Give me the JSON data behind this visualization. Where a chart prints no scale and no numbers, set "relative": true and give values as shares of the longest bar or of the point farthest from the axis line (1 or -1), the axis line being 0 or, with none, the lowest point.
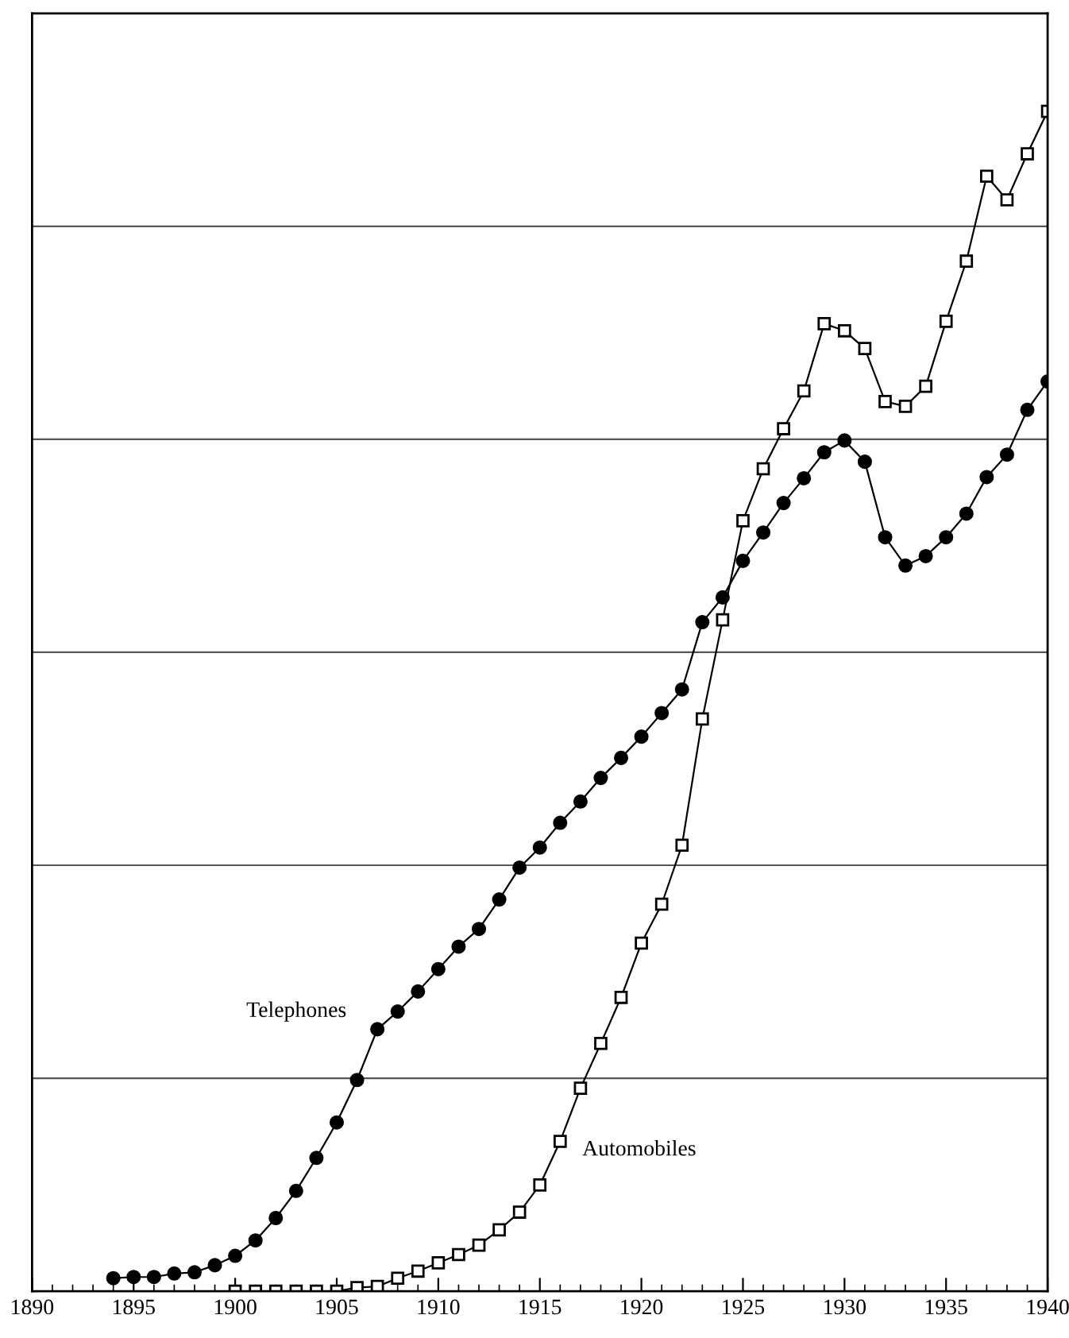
{
  "chart_data": {
    "type": "line",
    "relative": true,
    "grid": "y",
    "legend": false,
    "xlim": [
      1890,
      1940
    ],
    "xticks": [
      1890,
      1895,
      1900,
      1905,
      1910,
      1915,
      1920,
      1925,
      1930,
      1935,
      1940
    ],
    "series": [
      {
        "name": "Telephones",
        "color": "#000000",
        "marker": "circle",
        "x": [
          1894,
          1895,
          1896,
          1897,
          1898,
          1899,
          1900,
          1901,
          1902,
          1903,
          1904,
          1905,
          1906,
          1907,
          1908,
          1909,
          1910,
          1911,
          1912,
          1913,
          1914,
          1915,
          1916,
          1917,
          1918,
          1919,
          1920,
          1921,
          1922,
          1923,
          1924,
          1925,
          1926,
          1927,
          1928,
          1929,
          1930,
          1931,
          1932,
          1933,
          1934,
          1935,
          1936,
          1937,
          1938,
          1939,
          1940
        ],
        "values": [
          0.011,
          0.012,
          0.012,
          0.015,
          0.016,
          0.022,
          0.03,
          0.043,
          0.062,
          0.085,
          0.113,
          0.143,
          0.179,
          0.222,
          0.237,
          0.254,
          0.273,
          0.292,
          0.307,
          0.332,
          0.359,
          0.376,
          0.397,
          0.415,
          0.435,
          0.452,
          0.47,
          0.49,
          0.51,
          0.567,
          0.588,
          0.619,
          0.643,
          0.668,
          0.689,
          0.711,
          0.721,
          0.703,
          0.639,
          0.615,
          0.623,
          0.639,
          0.659,
          0.69,
          0.709,
          0.747,
          0.771
        ]
      },
      {
        "name": "Automobiles",
        "color": "#000000",
        "marker": "square",
        "x": [
          1900,
          1901,
          1902,
          1903,
          1904,
          1905,
          1906,
          1907,
          1908,
          1909,
          1910,
          1911,
          1912,
          1913,
          1914,
          1915,
          1916,
          1917,
          1918,
          1919,
          1920,
          1921,
          1922,
          1923,
          1924,
          1925,
          1926,
          1927,
          1928,
          1929,
          1930,
          1931,
          1932,
          1933,
          1934,
          1935,
          1936,
          1937,
          1938,
          1939,
          1940
        ],
        "values": [
          0,
          0,
          0,
          0,
          0,
          0,
          0.003,
          0.004,
          0.011,
          0.017,
          0.024,
          0.031,
          0.039,
          0.052,
          0.067,
          0.09,
          0.127,
          0.172,
          0.21,
          0.249,
          0.295,
          0.328,
          0.378,
          0.485,
          0.569,
          0.653,
          0.697,
          0.731,
          0.763,
          0.82,
          0.814,
          0.799,
          0.754,
          0.75,
          0.767,
          0.822,
          0.873,
          0.945,
          0.925,
          0.964,
          1
        ]
      }
    ]
  }
}
